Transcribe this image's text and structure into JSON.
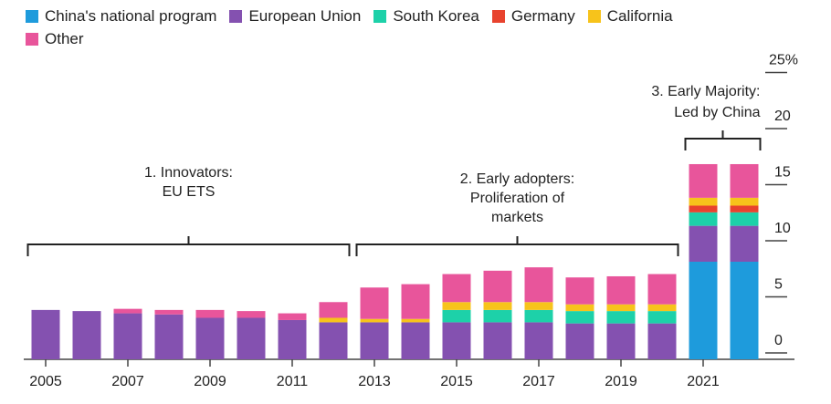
{
  "chart_data": {
    "type": "bar",
    "stacked": true,
    "title": "",
    "xlabel": "",
    "ylabel": "",
    "ylim": [
      0,
      25
    ],
    "y_ticks": [
      "0",
      "5",
      "10",
      "15",
      "20",
      "25%"
    ],
    "y_tick_values": [
      0,
      5,
      10,
      15,
      20,
      25
    ],
    "x_tick_labels": [
      "2005",
      "2007",
      "2009",
      "2011",
      "2013",
      "2015",
      "2017",
      "2019",
      "2021"
    ],
    "categories": [
      "2005",
      "2006",
      "2007",
      "2008",
      "2009",
      "2010",
      "2011",
      "2012",
      "2013",
      "2014",
      "2015",
      "2016",
      "2017",
      "2018",
      "2019",
      "2020",
      "2021",
      "2022"
    ],
    "legend_position": "top-left",
    "grid": false,
    "series": [
      {
        "name": "China's national program",
        "color": "#1e9bdc",
        "values": [
          0,
          0,
          0,
          0,
          0,
          0,
          0,
          0,
          0,
          0,
          0,
          0,
          0,
          0,
          0,
          0,
          8.7,
          8.7
        ]
      },
      {
        "name": "European Union",
        "color": "#8451b0",
        "values": [
          4.4,
          4.3,
          4.1,
          4.0,
          3.7,
          3.7,
          3.5,
          3.3,
          3.3,
          3.3,
          3.3,
          3.3,
          3.3,
          3.2,
          3.2,
          3.2,
          3.2,
          3.2
        ]
      },
      {
        "name": "South Korea",
        "color": "#1dd1a9",
        "values": [
          0,
          0,
          0,
          0,
          0,
          0,
          0,
          0,
          0,
          0,
          1.1,
          1.1,
          1.1,
          1.1,
          1.1,
          1.1,
          1.2,
          1.2
        ]
      },
      {
        "name": "Germany",
        "color": "#e8432e",
        "values": [
          0,
          0,
          0,
          0,
          0,
          0,
          0,
          0,
          0,
          0,
          0,
          0,
          0,
          0,
          0,
          0,
          0.6,
          0.6
        ]
      },
      {
        "name": "California",
        "color": "#f7c31b",
        "values": [
          0,
          0,
          0,
          0,
          0,
          0,
          0,
          0.4,
          0.3,
          0.3,
          0.7,
          0.7,
          0.7,
          0.6,
          0.6,
          0.6,
          0.7,
          0.7
        ]
      },
      {
        "name": "Other",
        "color": "#e8559b",
        "values": [
          0,
          0,
          0.4,
          0.4,
          0.7,
          0.6,
          0.6,
          1.4,
          2.8,
          3.1,
          2.5,
          2.8,
          3.1,
          2.4,
          2.5,
          2.7,
          3.0,
          3.0
        ]
      }
    ],
    "annotations": [
      {
        "lines": [
          "1. Innovators:",
          "EU ETS"
        ],
        "from": "2005",
        "to": "2012"
      },
      {
        "lines": [
          "2. Early adopters:",
          "Proliferation of",
          "markets"
        ],
        "from": "2013",
        "to": "2020"
      },
      {
        "lines": [
          "3. Early Majority:",
          "Led by China"
        ],
        "from": "2021",
        "to": "2022"
      }
    ]
  }
}
